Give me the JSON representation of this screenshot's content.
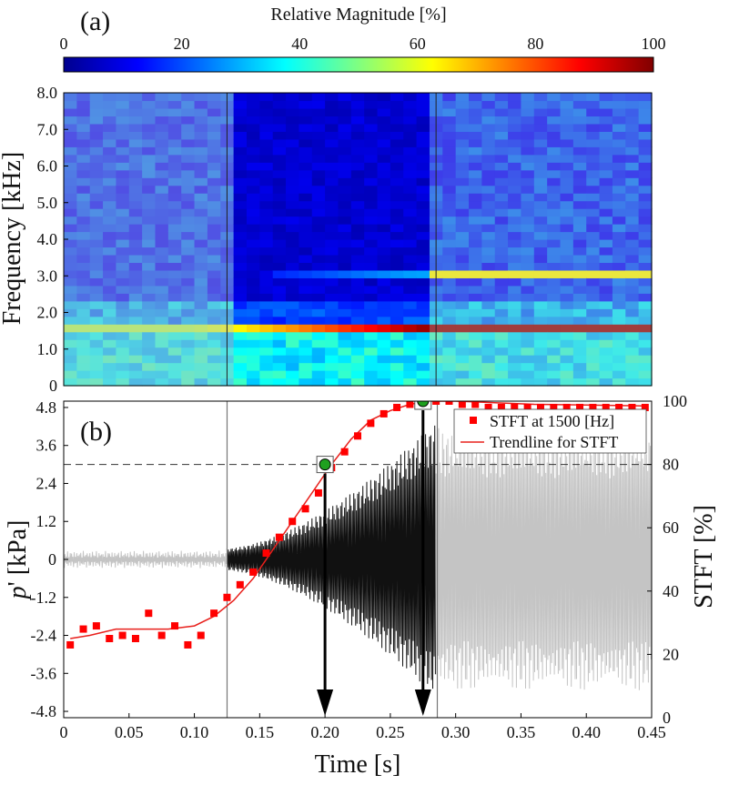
{
  "panel_a": {
    "label": "(a)",
    "colorbar": {
      "title": "Relative Magnitude [%]",
      "min": 0,
      "max": 100,
      "ticks": [
        "0",
        "20",
        "40",
        "60",
        "80",
        "100"
      ]
    },
    "ylabel": "Frequency [kHz]",
    "yticks": [
      "0",
      "1.0",
      "2.0",
      "3.0",
      "4.0",
      "5.0",
      "6.0",
      "7.0",
      "8.0"
    ]
  },
  "panel_b": {
    "label": "(b)",
    "ylabel_left_main": "p",
    "ylabel_left_prime": "'",
    "ylabel_left_unit": " [kPa]",
    "ylabel_right": "STFT [%]",
    "xlabel": "Time [s]",
    "left_yticks": [
      "4.8",
      "3.6",
      "2.4",
      "1.2",
      "0",
      "-1.2",
      "-2.4",
      "-3.6",
      "-4.8"
    ],
    "right_yticks": [
      "100",
      "80",
      "60",
      "40",
      "20",
      "0"
    ],
    "xticks": [
      "0",
      "0.05",
      "0.10",
      "0.15",
      "0.20",
      "0.25",
      "0.30",
      "0.35",
      "0.40",
      "0.45"
    ],
    "legend": {
      "markers": "STFT at 1500 [Hz]",
      "line": "Trendline for STFT"
    }
  },
  "colors": {
    "markers": "#ff0000",
    "trend": "#e8201c",
    "pressure_active": "#111111",
    "pressure_faded": "#c4c4c4",
    "highlight": "#1fa01f"
  },
  "chart_data": [
    {
      "type": "heatmap",
      "xlim": [
        0,
        0.45
      ],
      "ylim": [
        0,
        8.0
      ],
      "ylabel": "Frequency [kHz]",
      "colorbar_range": [
        0,
        100
      ],
      "segments": [
        0.125,
        0.285
      ]
    },
    {
      "type": "scatter",
      "xlabel": "Time [s]",
      "ylabel_left": "p' [kPa]",
      "ylabel_right": "STFT [%]",
      "xlim": [
        0,
        0.45
      ],
      "ylim_left": [
        -5.0,
        5.0
      ],
      "ylim_right": [
        0,
        100
      ],
      "series": [
        {
          "name": "STFT at 1500 [Hz]",
          "axis": "right",
          "x": [
            0.005,
            0.015,
            0.025,
            0.035,
            0.045,
            0.055,
            0.065,
            0.075,
            0.085,
            0.095,
            0.105,
            0.115,
            0.125,
            0.135,
            0.145,
            0.155,
            0.165,
            0.175,
            0.185,
            0.195,
            0.205,
            0.215,
            0.225,
            0.235,
            0.245,
            0.255,
            0.265,
            0.275,
            0.285,
            0.295,
            0.305,
            0.315,
            0.325,
            0.335,
            0.345,
            0.355,
            0.365,
            0.375,
            0.385,
            0.395,
            0.405,
            0.415,
            0.425,
            0.435,
            0.445
          ],
          "values": [
            23,
            28,
            29,
            25,
            26,
            25,
            33,
            26,
            29,
            23,
            26,
            33,
            38,
            42,
            46,
            52,
            57,
            62,
            66,
            71,
            79,
            84,
            89,
            93,
            96,
            98,
            99,
            100,
            100,
            100,
            99,
            99,
            98,
            98,
            98,
            98,
            98,
            98,
            98,
            98,
            98,
            98,
            98,
            98,
            98
          ]
        },
        {
          "name": "Trendline for STFT",
          "axis": "right",
          "type": "line",
          "x": [
            0.005,
            0.02,
            0.04,
            0.06,
            0.08,
            0.1,
            0.115,
            0.13,
            0.145,
            0.16,
            0.175,
            0.19,
            0.205,
            0.22,
            0.235,
            0.25,
            0.265,
            0.28,
            0.3,
            0.33,
            0.36,
            0.4,
            0.445
          ],
          "values": [
            25,
            26,
            28,
            28,
            28,
            29,
            32,
            37,
            44,
            53,
            62,
            71,
            80,
            88,
            94,
            97,
            99,
            100,
            100,
            99.5,
            99,
            98.8,
            98.5
          ]
        }
      ],
      "highlighted_points": [
        {
          "x": 0.2,
          "stft": 80
        },
        {
          "x": 0.275,
          "stft": 100
        }
      ],
      "arrows_at": [
        0.2,
        0.275
      ],
      "vertical_lines": [
        0.125,
        0.285
      ],
      "dashed_levels_right": [
        100,
        80
      ]
    }
  ]
}
